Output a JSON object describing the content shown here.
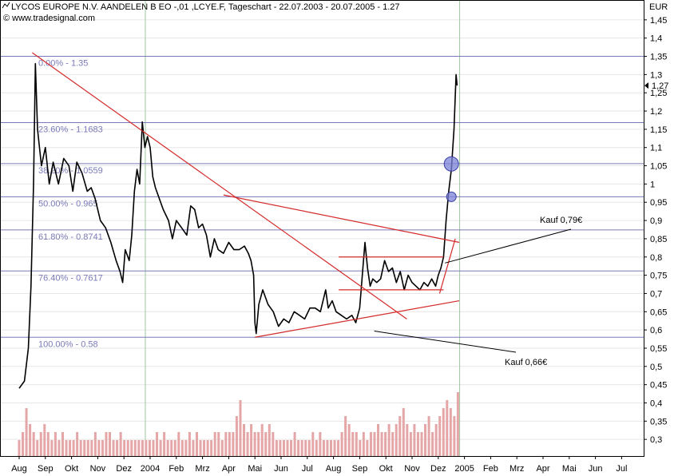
{
  "header": {
    "title": "LYCOS EUROPE N.V. AANDELEN B EO -,01 ,LCYE.F, Tageschart - 22.07.2003 - 20.07.2005 - 1.27",
    "source": "© www.tradesignal.com",
    "unit": "EUR"
  },
  "chart_data": {
    "type": "line",
    "title": "LYCOS EUROPE N.V. AANDELEN B EO -,01 ,LCYE.F, Tageschart - 22.07.2003 - 20.07.2005 - 1.27",
    "ylabel": "EUR",
    "ylim": [
      0.25,
      1.5
    ],
    "y_ticks": [
      "1,45",
      "1,4",
      "1,35",
      "1,3",
      "1,25",
      "1,2",
      "1,15",
      "1,1",
      "1,05",
      "1",
      "0,95",
      "0,9",
      "0,85",
      "0,8",
      "0,75",
      "0,7",
      "0,65",
      "0,6",
      "0,55",
      "0,5",
      "0,45",
      "0,4",
      "0,35",
      "0,3"
    ],
    "last_price_label": "1,27",
    "x_ticks": [
      "Aug",
      "Sep",
      "Okt",
      "Nov",
      "Dez",
      "2004",
      "Feb",
      "Mrz",
      "Apr",
      "Mai",
      "Jun",
      "Jul",
      "Aug",
      "Sep",
      "Okt",
      "Nov",
      "Dez",
      "2005",
      "Feb",
      "Mrz",
      "Apr",
      "Mai",
      "Jun",
      "Jul"
    ],
    "grid": true,
    "series": [
      {
        "values": [
          [
            0,
            0.44
          ],
          [
            0.2,
            0.46
          ],
          [
            0.35,
            0.55
          ],
          [
            0.45,
            0.72
          ],
          [
            0.55,
            1.0
          ],
          [
            0.62,
            1.33
          ],
          [
            0.7,
            1.15
          ],
          [
            0.85,
            1.05
          ],
          [
            1.0,
            1.1
          ],
          [
            1.15,
            1.0
          ],
          [
            1.3,
            1.06
          ],
          [
            1.5,
            1.0
          ],
          [
            1.7,
            1.07
          ],
          [
            1.9,
            1.05
          ],
          [
            2.05,
            0.98
          ],
          [
            2.2,
            1.06
          ],
          [
            2.4,
            1.03
          ],
          [
            2.6,
            0.98
          ],
          [
            2.75,
            0.99
          ],
          [
            2.9,
            0.96
          ],
          [
            3.1,
            0.9
          ],
          [
            3.3,
            0.88
          ],
          [
            3.5,
            0.84
          ],
          [
            3.7,
            0.79
          ],
          [
            3.85,
            0.76
          ],
          [
            3.95,
            0.73
          ],
          [
            4.05,
            0.82
          ],
          [
            4.2,
            0.79
          ],
          [
            4.3,
            0.86
          ],
          [
            4.4,
            0.98
          ],
          [
            4.5,
            1.04
          ],
          [
            4.6,
            1.0
          ],
          [
            4.7,
            1.17
          ],
          [
            4.8,
            1.1
          ],
          [
            4.9,
            1.13
          ],
          [
            5.0,
            1.1
          ],
          [
            5.1,
            1.02
          ],
          [
            5.2,
            0.99
          ],
          [
            5.35,
            0.96
          ],
          [
            5.5,
            0.93
          ],
          [
            5.7,
            0.9
          ],
          [
            5.85,
            0.85
          ],
          [
            6.0,
            0.9
          ],
          [
            6.2,
            0.88
          ],
          [
            6.4,
            0.86
          ],
          [
            6.55,
            0.94
          ],
          [
            6.7,
            0.93
          ],
          [
            6.85,
            0.88
          ],
          [
            7.0,
            0.89
          ],
          [
            7.15,
            0.86
          ],
          [
            7.3,
            0.8
          ],
          [
            7.45,
            0.85
          ],
          [
            7.6,
            0.82
          ],
          [
            7.8,
            0.81
          ],
          [
            8.0,
            0.84
          ],
          [
            8.2,
            0.82
          ],
          [
            8.4,
            0.82
          ],
          [
            8.6,
            0.83
          ],
          [
            8.75,
            0.81
          ],
          [
            8.85,
            0.79
          ],
          [
            8.95,
            0.75
          ],
          [
            9.0,
            0.62
          ],
          [
            9.05,
            0.59
          ],
          [
            9.15,
            0.67
          ],
          [
            9.3,
            0.71
          ],
          [
            9.5,
            0.67
          ],
          [
            9.7,
            0.65
          ],
          [
            9.9,
            0.61
          ],
          [
            10.1,
            0.63
          ],
          [
            10.3,
            0.62
          ],
          [
            10.5,
            0.65
          ],
          [
            10.7,
            0.64
          ],
          [
            10.9,
            0.63
          ],
          [
            11.1,
            0.66
          ],
          [
            11.3,
            0.66
          ],
          [
            11.5,
            0.65
          ],
          [
            11.7,
            0.71
          ],
          [
            11.8,
            0.66
          ],
          [
            11.95,
            0.68
          ],
          [
            12.1,
            0.65
          ],
          [
            12.3,
            0.64
          ],
          [
            12.5,
            0.63
          ],
          [
            12.7,
            0.64
          ],
          [
            12.85,
            0.62
          ],
          [
            13.0,
            0.66
          ],
          [
            13.1,
            0.75
          ],
          [
            13.2,
            0.84
          ],
          [
            13.3,
            0.77
          ],
          [
            13.4,
            0.72
          ],
          [
            13.5,
            0.74
          ],
          [
            13.65,
            0.73
          ],
          [
            13.8,
            0.74
          ],
          [
            13.95,
            0.79
          ],
          [
            14.1,
            0.76
          ],
          [
            14.25,
            0.77
          ],
          [
            14.4,
            0.73
          ],
          [
            14.55,
            0.76
          ],
          [
            14.7,
            0.71
          ],
          [
            14.85,
            0.75
          ],
          [
            15.0,
            0.73
          ],
          [
            15.15,
            0.72
          ],
          [
            15.3,
            0.71
          ],
          [
            15.45,
            0.73
          ],
          [
            15.6,
            0.72
          ],
          [
            15.75,
            0.74
          ],
          [
            15.9,
            0.72
          ],
          [
            16.0,
            0.75
          ],
          [
            16.1,
            0.77
          ],
          [
            16.2,
            0.8
          ],
          [
            16.3,
            0.9
          ],
          [
            16.4,
            0.98
          ],
          [
            16.5,
            1.04
          ],
          [
            16.6,
            1.15
          ],
          [
            16.68,
            1.3
          ],
          [
            16.72,
            1.27
          ]
        ]
      }
    ],
    "volume": [
      2,
      3,
      6,
      4,
      3,
      2,
      3,
      4,
      3,
      2,
      3,
      2,
      3,
      2,
      2,
      2,
      3,
      2,
      2,
      2,
      2,
      3,
      2,
      2,
      3,
      3,
      2,
      2,
      3,
      2,
      2,
      2,
      2,
      2,
      2,
      2,
      2,
      2,
      3,
      2,
      3,
      2,
      2,
      2,
      3,
      2,
      2,
      3,
      2,
      3,
      2,
      2,
      2,
      2,
      3,
      3,
      2,
      3,
      3,
      3,
      5,
      7,
      4,
      3,
      4,
      3,
      3,
      4,
      3,
      4,
      3,
      2,
      2,
      2,
      2,
      2,
      3,
      2,
      2,
      2,
      2,
      3,
      2,
      3,
      2,
      2,
      2,
      2,
      2,
      3,
      5,
      4,
      3,
      3,
      2,
      3,
      2,
      3,
      3,
      4,
      3,
      3,
      4,
      3,
      4,
      5,
      6,
      4,
      3,
      4,
      3,
      3,
      4,
      5,
      3,
      4,
      5,
      6,
      7,
      6,
      5,
      8
    ],
    "fibonacci": [
      {
        "label": "0.00% - 1.35",
        "value": 1.35
      },
      {
        "label": "23.60% - 1.1683",
        "value": 1.1683
      },
      {
        "label": "38.20% - 1.0559",
        "value": 1.0559
      },
      {
        "label": "50.00% - 0.965",
        "value": 0.965
      },
      {
        "label": "61.80% - 0.8741",
        "value": 0.8741
      },
      {
        "label": "76.40% - 0.7617",
        "value": 0.7617
      },
      {
        "label": "100.00% - 0.58",
        "value": 0.58
      }
    ],
    "trendlines": [
      {
        "from": [
          0.5,
          1.36
        ],
        "to": [
          14.8,
          0.63
        ]
      },
      {
        "from": [
          7.8,
          0.97
        ],
        "to": [
          16.8,
          0.84
        ]
      },
      {
        "from": [
          9.0,
          0.58
        ],
        "to": [
          16.8,
          0.68
        ]
      },
      {
        "from": [
          12.2,
          0.8
        ],
        "to": [
          16.2,
          0.8
        ]
      },
      {
        "from": [
          12.2,
          0.71
        ],
        "to": [
          16.2,
          0.71
        ]
      },
      {
        "from": [
          16.05,
          0.7
        ],
        "to": [
          16.65,
          0.85
        ]
      }
    ],
    "annotations": [
      {
        "text": "Kauf 0,79€",
        "at": [
          15.95,
          0.79
        ]
      },
      {
        "text": "Kauf 0,66€",
        "at": [
          13.25,
          0.61
        ]
      }
    ],
    "markers": [
      1.055,
      0.965
    ]
  },
  "colors": {
    "price": "#000000",
    "fib": "#7a7ab8",
    "trend": "#d42a2a",
    "volume": "#e4a6a6",
    "marker": "#7b82d8",
    "grid_v": "#9ec79e"
  }
}
